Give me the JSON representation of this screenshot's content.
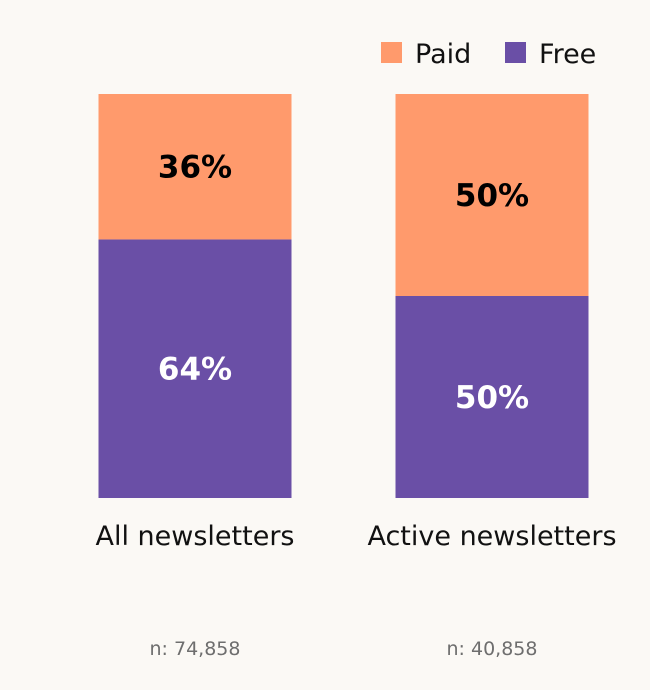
{
  "chart_data": {
    "type": "bar",
    "stacked": true,
    "categories": [
      "All newsletters",
      "Active newsletters"
    ],
    "series": [
      {
        "name": "Paid",
        "values": [
          36,
          50
        ],
        "labels": [
          "36%",
          "50%"
        ],
        "color": "#ff9a6c",
        "label_color": "#000000"
      },
      {
        "name": "Free",
        "values": [
          64,
          50
        ],
        "labels": [
          "64%",
          "50%"
        ],
        "color": "#6a4fa6",
        "label_color": "#ffffff"
      }
    ],
    "sample_sizes": [
      "n: 74,858",
      "n: 40,858"
    ],
    "ylim": [
      0,
      100
    ],
    "legend_position": "top-right",
    "grid": false
  }
}
